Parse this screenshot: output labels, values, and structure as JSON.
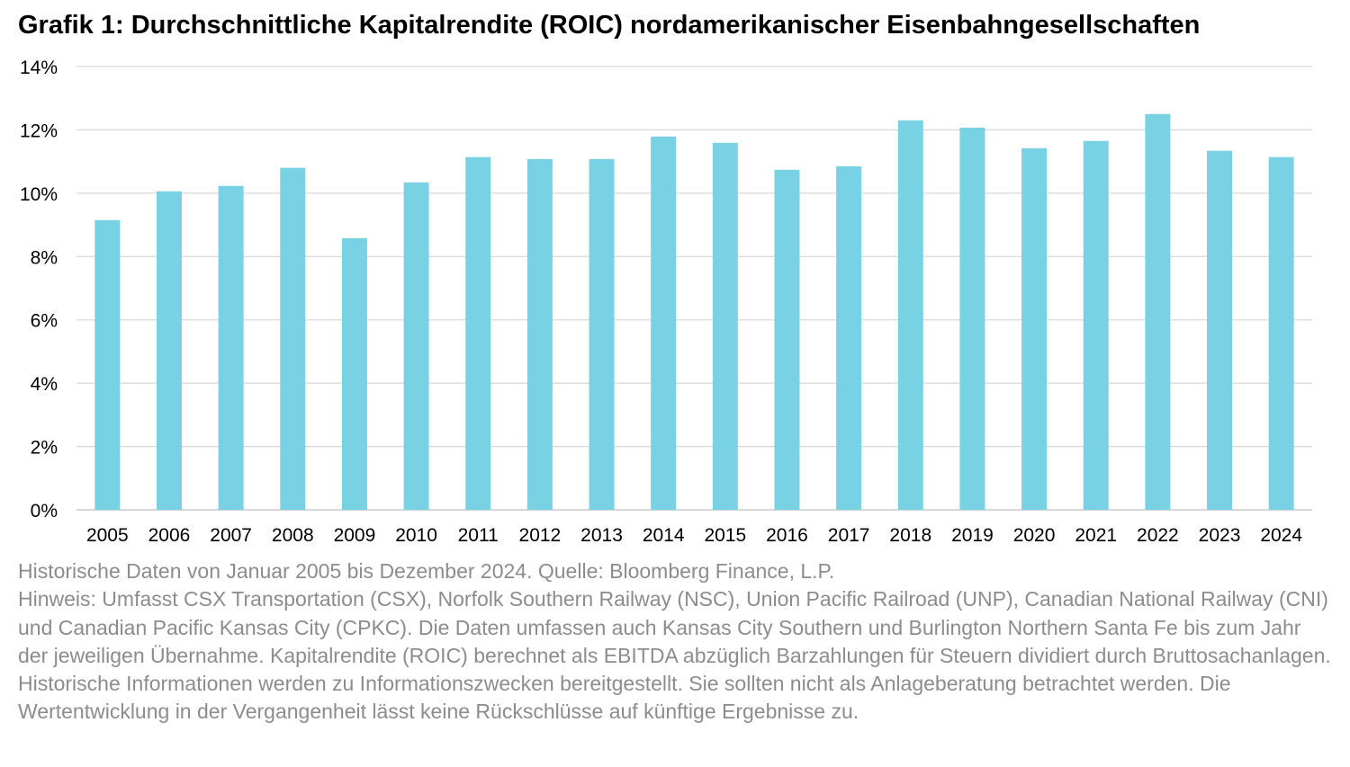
{
  "chart_data": {
    "type": "bar",
    "title": "Grafik 1: Durchschnittliche Kapitalrendite (ROIC) nordamerikanischer Eisenbahngesellschaften",
    "xlabel": "",
    "ylabel": "",
    "categories": [
      "2005",
      "2006",
      "2007",
      "2008",
      "2009",
      "2010",
      "2011",
      "2012",
      "2013",
      "2014",
      "2015",
      "2016",
      "2017",
      "2018",
      "2019",
      "2020",
      "2021",
      "2022",
      "2023",
      "2024"
    ],
    "values": [
      9.15,
      10.06,
      10.23,
      10.8,
      8.58,
      10.34,
      11.14,
      11.08,
      11.08,
      11.79,
      11.59,
      10.74,
      10.85,
      12.3,
      12.07,
      11.42,
      11.65,
      12.5,
      11.34,
      11.14
    ],
    "ylim": [
      0,
      14
    ],
    "yticks": [
      "0%",
      "2%",
      "4%",
      "6%",
      "8%",
      "10%",
      "12%",
      "14%"
    ],
    "grid": true,
    "legend": "none",
    "bar_color": "#79D1E4"
  },
  "notes": {
    "source": "Historische Daten von Januar 2005 bis Dezember 2024. Quelle: Bloomberg Finance, L.P.",
    "disclaimer": "Hinweis: Umfasst CSX Transportation (CSX), Norfolk Southern Railway (NSC), Union Pacific Railroad (UNP), Canadian National Railway (CNI) und Canadian Pacific Kansas City (CPKC). Die Daten umfassen auch Kansas City Southern und Burlington Northern Santa Fe bis zum Jahr der jeweiligen Übernahme. Kapitalrendite (ROIC) berechnet als EBITDA abzüglich Barzahlungen für Steuern dividiert durch Bruttosachanlagen. Historische Informationen werden zu Informationszwecken bereitgestellt. Sie sollten nicht als Anlageberatung betrachtet werden. Die Wertentwicklung in der Vergangenheit lässt keine Rückschlüsse auf künftige Ergebnisse zu."
  }
}
